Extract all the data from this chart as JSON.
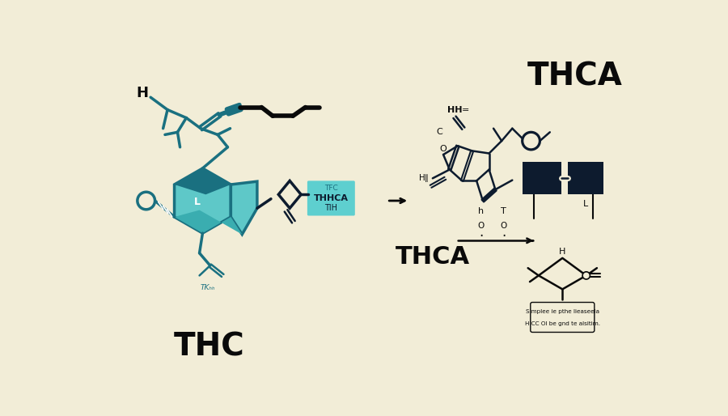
{
  "background_color": "#F2EDD7",
  "title_thc": "THC",
  "title_thca": "THCA",
  "label_thca_bottom": "THCA",
  "teal_dark": "#1A7080",
  "teal_mid": "#2AA8A8",
  "teal_light": "#5EC8C8",
  "teal_box": "#5ECFCF",
  "navy": "#0D1B2E",
  "black": "#0A0A0A",
  "white": "#FFFFFF",
  "title_fontsize": 28,
  "label_fontsize": 22,
  "annotation_fontsize": 9,
  "figwidth": 9.0,
  "figheight": 5.14,
  "dpi": 100
}
